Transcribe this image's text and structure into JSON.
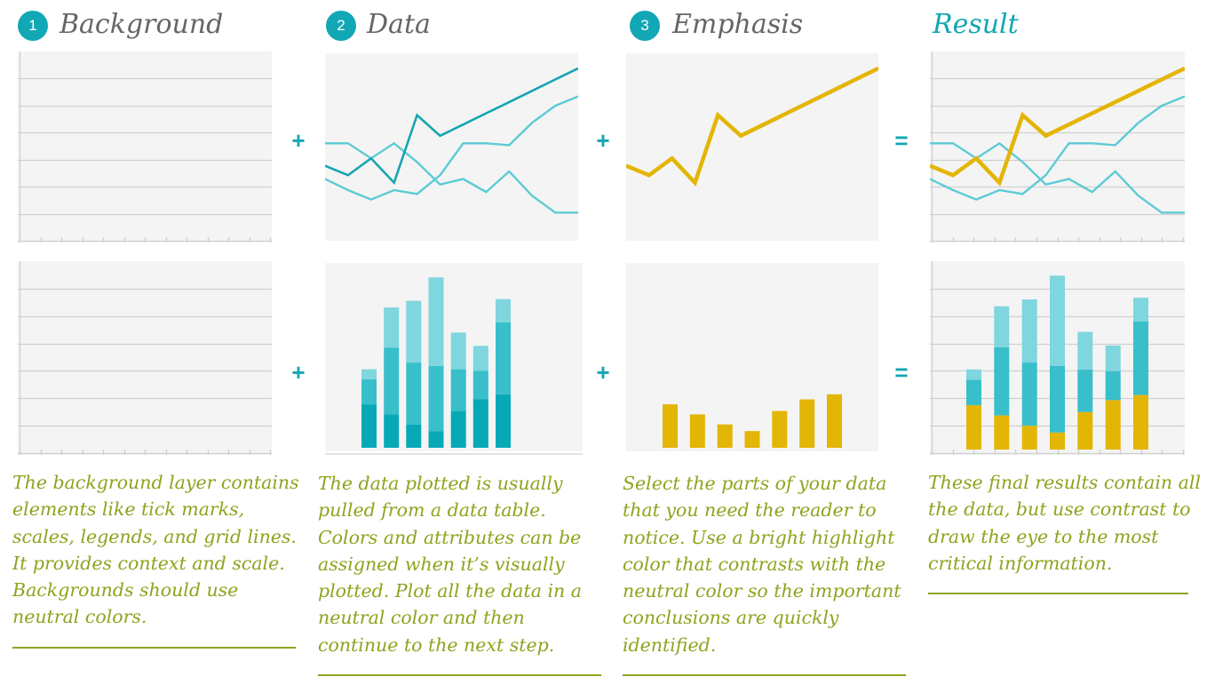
{
  "steps": [
    {
      "number": "1",
      "title": "Background",
      "caption": "The background layer contains elements like tick marks, scales, legends, and grid lines. It provides context and scale. Backgrounds should use neutral colors."
    },
    {
      "number": "2",
      "title": "Data",
      "caption": "The data plotted is usually pulled from a data table. Colors and attributes can be assigned when it’s visually plotted. Plot all the data in a neutral color and then continue to the next step."
    },
    {
      "number": "3",
      "title": "Emphasis",
      "caption": "Select the parts of your data that you need the reader to notice. Use a bright highlight color that contrasts with the neutral color so the important conclusions are quickly identified."
    },
    {
      "number": "",
      "title": "Result",
      "caption": "These final results contain all the data, but use contrast to draw the eye to the most critical information."
    }
  ],
  "operators": {
    "plus": "+",
    "equals": "="
  },
  "colors": {
    "accent": "#12a7b4",
    "gold": "#e3b505",
    "caption_green": "#8fa31e",
    "panel_bg": "#f4f4f4",
    "grid": "#d0d0d0",
    "teal_dark": "#07a9b6",
    "teal_mid": "#38bfca",
    "teal_light": "#7fd6de",
    "line_dark": "#16a5b2",
    "line_light": "#5ccbd5"
  },
  "chart_data": [
    {
      "type": "line",
      "x": [
        0,
        1,
        2,
        3,
        4,
        5,
        6,
        7,
        8,
        9,
        10,
        11
      ],
      "ylim": [
        0,
        100
      ],
      "series": [
        {
          "role": "emphasis",
          "values": [
            40,
            35,
            44,
            31,
            67,
            56,
            62,
            68,
            74,
            80,
            86,
            92
          ]
        },
        {
          "role": "neutral",
          "values": [
            52,
            52,
            44,
            52,
            42,
            30,
            33,
            26,
            37,
            24,
            15,
            15
          ]
        },
        {
          "role": "neutral",
          "values": [
            33,
            27,
            22,
            27,
            25,
            35,
            52,
            52,
            51,
            63,
            72,
            77
          ]
        }
      ]
    },
    {
      "type": "bar",
      "stacked": true,
      "categories": [
        "1",
        "2",
        "3",
        "4",
        "5",
        "6",
        "7"
      ],
      "ylim": [
        0,
        100
      ],
      "series": [
        {
          "role": "emphasis",
          "values": [
            26,
            20,
            14,
            10,
            22,
            29,
            32
          ]
        },
        {
          "role": "neutral",
          "values": [
            15,
            40,
            37,
            39,
            25,
            17,
            43
          ]
        },
        {
          "role": "neutral",
          "values": [
            6,
            24,
            37,
            53,
            22,
            15,
            14
          ]
        }
      ]
    }
  ]
}
